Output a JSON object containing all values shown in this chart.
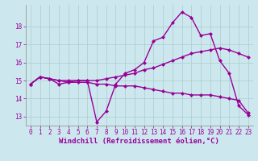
{
  "xlabel": "Windchill (Refroidissement éolien,°C)",
  "background_color": "#cce8ee",
  "line_color": "#990099",
  "grid_color": "#aacccc",
  "x_values": [
    0,
    1,
    2,
    3,
    4,
    5,
    6,
    7,
    8,
    9,
    10,
    11,
    12,
    13,
    14,
    15,
    16,
    17,
    18,
    19,
    20,
    21,
    22,
    23
  ],
  "series1": [
    14.8,
    15.2,
    15.1,
    14.8,
    14.9,
    15.0,
    15.0,
    12.7,
    13.3,
    14.8,
    15.4,
    15.6,
    16.0,
    17.2,
    17.4,
    18.2,
    18.8,
    18.5,
    17.5,
    17.6,
    16.1,
    15.4,
    13.6,
    13.1
  ],
  "series2": [
    14.8,
    15.2,
    15.1,
    15.0,
    15.0,
    15.0,
    15.0,
    15.0,
    15.1,
    15.2,
    15.3,
    15.4,
    15.6,
    15.7,
    15.9,
    16.1,
    16.3,
    16.5,
    16.6,
    16.7,
    16.8,
    16.7,
    16.5,
    16.3
  ],
  "series3": [
    14.8,
    15.2,
    15.1,
    15.0,
    14.9,
    14.9,
    14.9,
    14.8,
    14.8,
    14.7,
    14.7,
    14.7,
    14.6,
    14.5,
    14.4,
    14.3,
    14.3,
    14.2,
    14.2,
    14.2,
    14.1,
    14.0,
    13.9,
    13.2
  ],
  "ylim": [
    12.5,
    19.2
  ],
  "yticks": [
    13,
    14,
    15,
    16,
    17,
    18
  ],
  "xlim": [
    -0.5,
    23.5
  ],
  "xticks": [
    0,
    1,
    2,
    3,
    4,
    5,
    6,
    7,
    8,
    9,
    10,
    11,
    12,
    13,
    14,
    15,
    16,
    17,
    18,
    19,
    20,
    21,
    22,
    23
  ],
  "marker": "D",
  "marker_size": 2.5,
  "line_width": 1.0,
  "tick_fontsize": 5.5,
  "xlabel_fontsize": 6.5
}
